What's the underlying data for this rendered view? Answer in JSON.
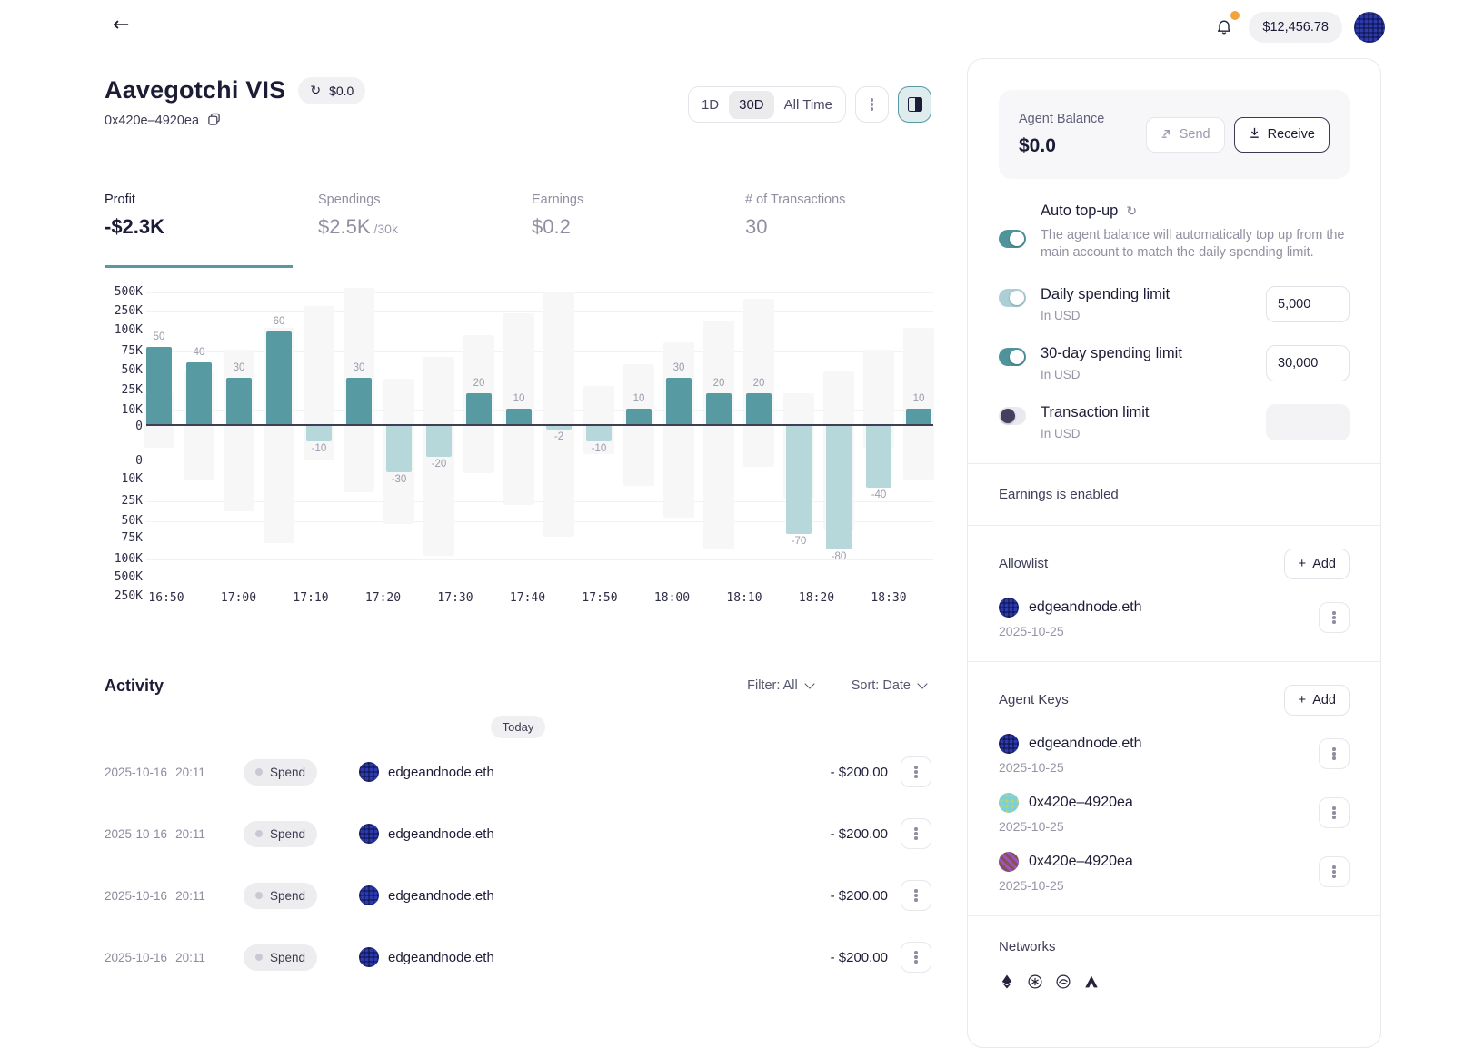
{
  "colors": {
    "accent_teal": "#579aa2",
    "negative_teal": "#b7d8da",
    "notification_orange": "#f2a33c",
    "avatar_blue": "#2c3ab0"
  },
  "topbar": {
    "balance": "$12,456.78"
  },
  "title": {
    "name": "Aavegotchi VIS",
    "badge_value": "$0.0",
    "address": "0x420e–4920ea"
  },
  "time_range": {
    "options": [
      "1D",
      "30D",
      "All Time"
    ],
    "selected": "30D"
  },
  "stats": [
    {
      "label": "Profit",
      "value": "-$2.3K",
      "suffix": ""
    },
    {
      "label": "Spendings",
      "value": "$2.5K",
      "suffix": "/30k"
    },
    {
      "label": "Earnings",
      "value": "$0.2",
      "suffix": ""
    },
    {
      "label": "# of Transactions",
      "value": "30",
      "suffix": ""
    }
  ],
  "chart_data": {
    "type": "bar",
    "x": [
      "16:50",
      "17:00",
      "17:10",
      "17:20",
      "17:30",
      "17:40",
      "17:50",
      "18:00",
      "18:10",
      "18:20",
      "18:30"
    ],
    "values": [
      50,
      40,
      30,
      60,
      -10,
      30,
      -30,
      -20,
      20,
      10,
      -2,
      -10,
      10,
      30,
      20,
      20,
      -70,
      -80,
      -40,
      10
    ],
    "y_ticks_positive": [
      "500K",
      "250K",
      "100K",
      "75K",
      "50K",
      "25K",
      "10K",
      "0"
    ],
    "y_ticks_negative": [
      "0",
      "10K",
      "25K",
      "50K",
      "75K",
      "100K",
      "500K",
      "250K"
    ],
    "title": "",
    "xlabel": "",
    "ylabel": "",
    "bar_color_positive": "#579aa2",
    "bar_color_negative": "#b7d8da",
    "grid": true,
    "legend": false
  },
  "activity": {
    "title": "Activity",
    "filter_label": "Filter: All",
    "sort_label": "Sort: Date",
    "day_divider": "Today",
    "rows": [
      {
        "date": "2025-10-16",
        "time": "20:11",
        "type": "Spend",
        "name": "edgeandnode.eth",
        "amount": "- $200.00"
      },
      {
        "date": "2025-10-16",
        "time": "20:11",
        "type": "Spend",
        "name": "edgeandnode.eth",
        "amount": "- $200.00"
      },
      {
        "date": "2025-10-16",
        "time": "20:11",
        "type": "Spend",
        "name": "edgeandnode.eth",
        "amount": "- $200.00"
      },
      {
        "date": "2025-10-16",
        "time": "20:11",
        "type": "Spend",
        "name": "edgeandnode.eth",
        "amount": "- $200.00"
      }
    ]
  },
  "panel": {
    "agent_balance": {
      "label": "Agent Balance",
      "value": "$0.0",
      "send_label": "Send",
      "receive_label": "Receive"
    },
    "auto_topup": {
      "title": "Auto top-up",
      "description": "The agent balance will automatically top up from the main account to match the daily spending limit.",
      "enabled": true
    },
    "limits": [
      {
        "label": "Daily spending limit",
        "sub": "In USD",
        "value": "5,000",
        "state": "on-light"
      },
      {
        "label": "30-day spending limit",
        "sub": "In USD",
        "value": "30,000",
        "state": "on"
      },
      {
        "label": "Transaction limit",
        "sub": "In USD",
        "value": "",
        "state": "off"
      }
    ],
    "earnings_status": "Earnings is enabled",
    "allowlist": {
      "title": "Allowlist",
      "add_label": "Add",
      "items": [
        {
          "name": "edgeandnode.eth",
          "date": "2025-10-25",
          "avatar": "blue"
        }
      ]
    },
    "agent_keys": {
      "title": "Agent Keys",
      "add_label": "Add",
      "items": [
        {
          "name": "edgeandnode.eth",
          "date": "2025-10-25",
          "avatar": "blue"
        },
        {
          "name": "0x420e–4920ea",
          "date": "2025-10-25",
          "avatar": "cyan"
        },
        {
          "name": "0x420e–4920ea",
          "date": "2025-10-25",
          "avatar": "purple"
        }
      ]
    },
    "networks": {
      "title": "Networks",
      "icons": [
        "ethereum",
        "circle-asterisk",
        "circle-swoosh",
        "avalanche"
      ]
    }
  }
}
